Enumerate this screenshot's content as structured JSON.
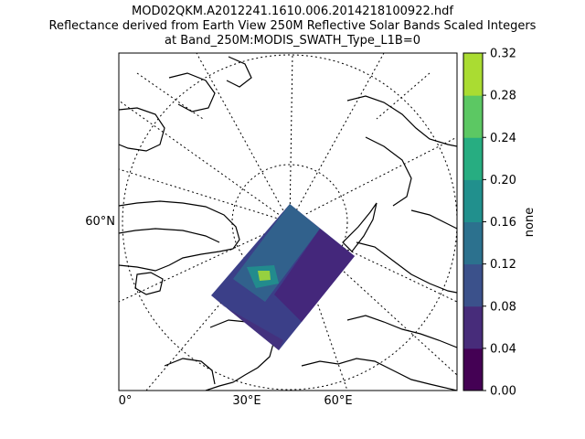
{
  "title": {
    "line1": "MOD02QKM.A2012241.1610.006.2014218100922.hdf",
    "line2": "Reflectance derived from Earth View 250M Reflective Solar Bands Scaled Integers",
    "line3": "at Band_250M:MODIS_SWATH_Type_L1B=0"
  },
  "map": {
    "projection": "north-polar-stereographic",
    "lat_labels": [
      "60°N"
    ],
    "lon_labels": [
      "0°",
      "30°E",
      "60°E"
    ],
    "coastline_color": "#000000",
    "graticule_style": "dotted"
  },
  "colorbar": {
    "label": "none",
    "ticks": [
      "0.00",
      "0.04",
      "0.08",
      "0.12",
      "0.16",
      "0.20",
      "0.24",
      "0.28",
      "0.32"
    ],
    "range": [
      0.0,
      0.32
    ],
    "colors": [
      "#440154",
      "#472c7a",
      "#3b518b",
      "#2c718e",
      "#21908d",
      "#27ad81",
      "#5cc863",
      "#aadc32"
    ]
  }
}
